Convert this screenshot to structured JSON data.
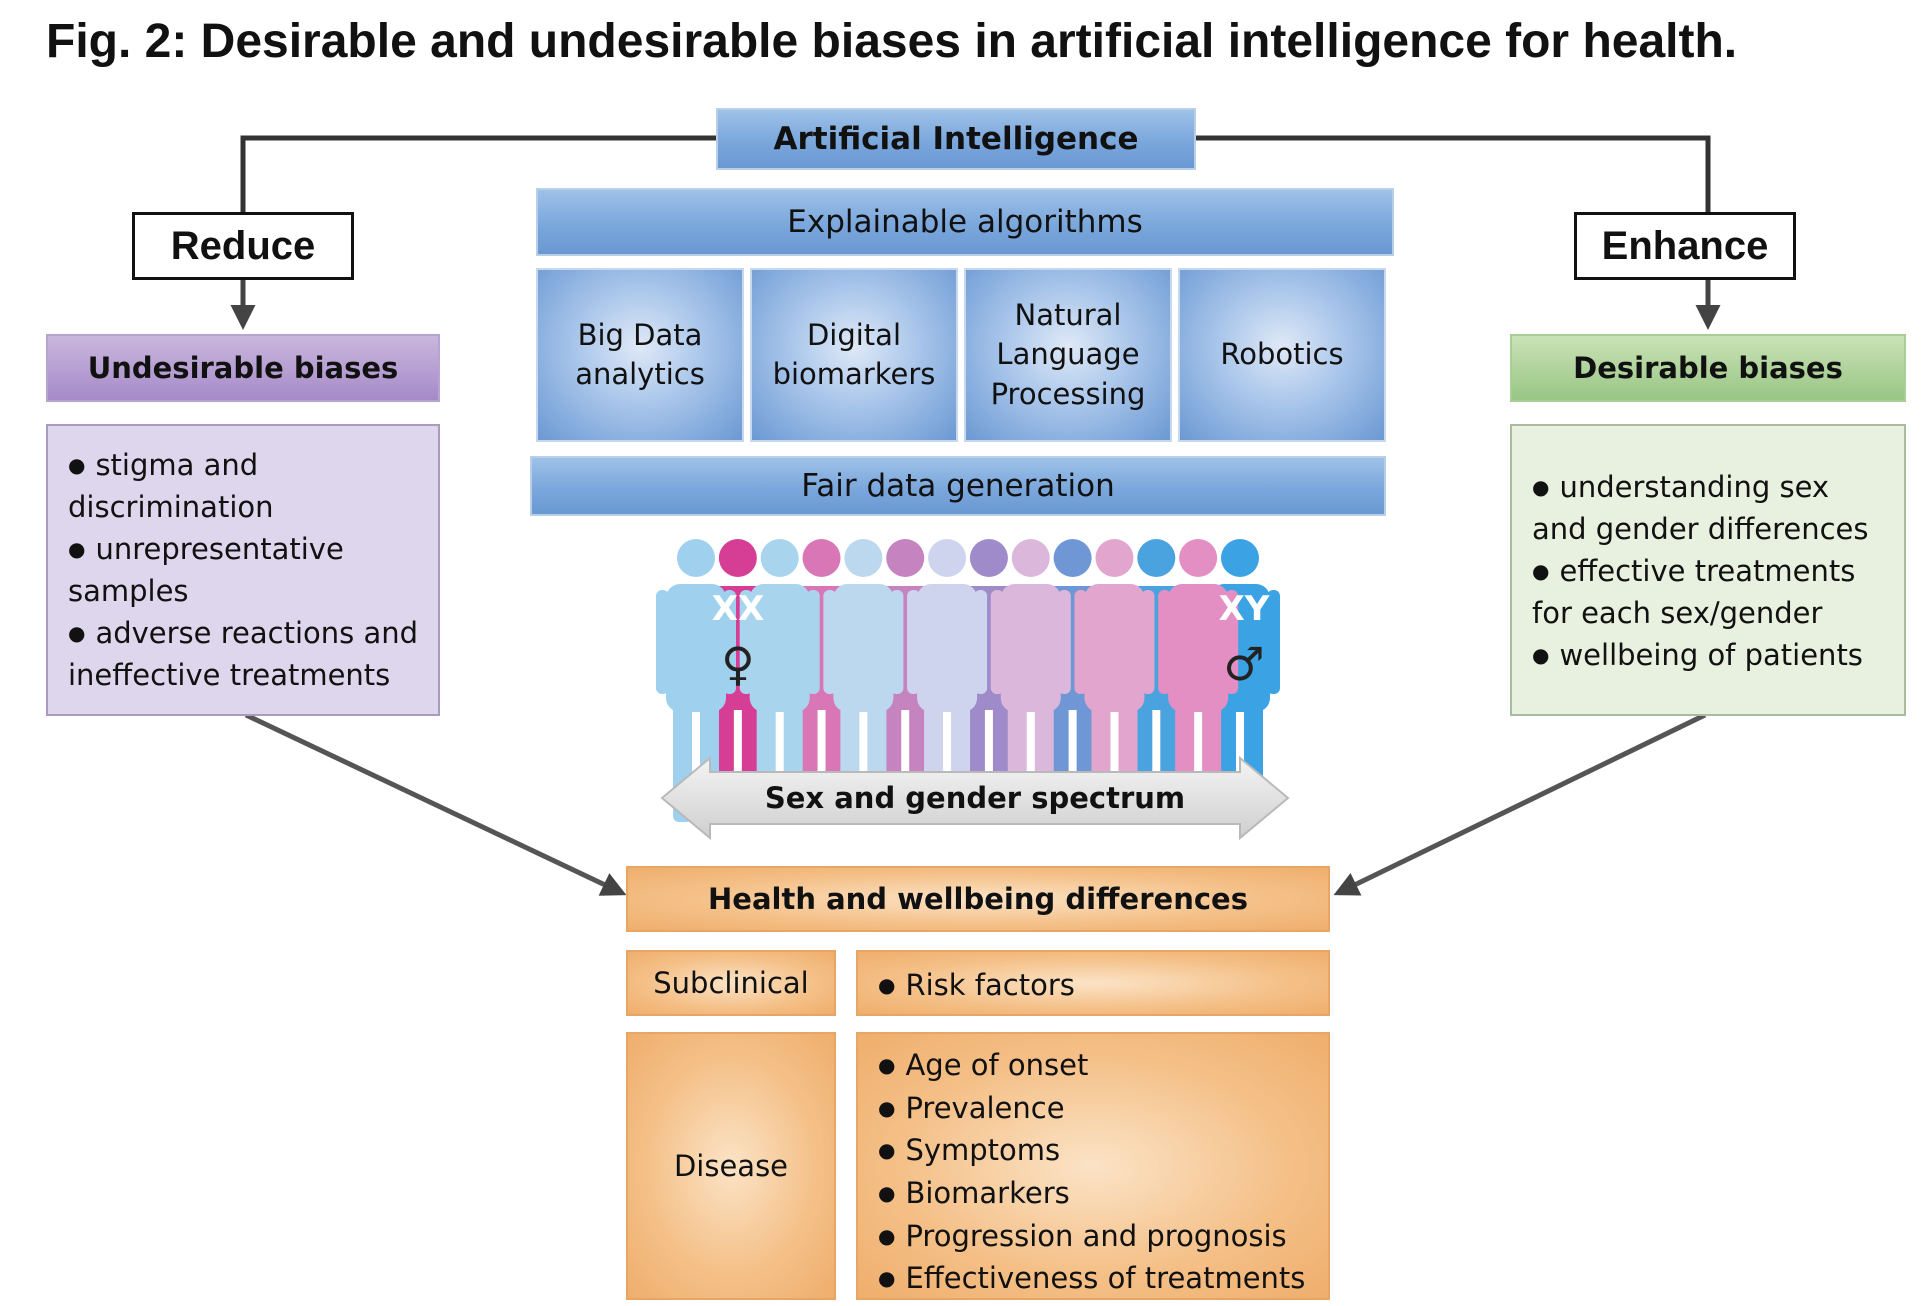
{
  "title": "Fig. 2: Desirable and undesirable biases in artificial intelligence for health.",
  "ai": {
    "top": "Artificial Intelligence",
    "explainable": "Explainable algorithms",
    "tiles": [
      [
        "Big Data",
        "analytics"
      ],
      [
        "Digital",
        "biomarkers"
      ],
      [
        "Natural",
        "Language",
        "Processing"
      ],
      [
        "Robotics"
      ]
    ],
    "fair": "Fair data generation"
  },
  "reduce": {
    "label": "Reduce",
    "header": "Undesirable biases",
    "items": [
      "stigma and discrimination",
      "unrepresentative samples",
      "adverse reactions and ineffective treatments"
    ]
  },
  "enhance": {
    "label": "Enhance",
    "header": "Desirable biases",
    "items": [
      "understanding sex and gender differences",
      "effective treatments for each sex/gender",
      "wellbeing of patients"
    ]
  },
  "spectrum": {
    "xx": "XX",
    "xy": "XY",
    "female_symbol": "♀",
    "male_symbol": "♂",
    "label": "Sex and gender spectrum",
    "figure_colors": [
      "#9fd1ee",
      "#d63d95",
      "#a8d4ee",
      "#d977b6",
      "#bcd8ee",
      "#c583c0",
      "#cfd4ee",
      "#9f8bc9",
      "#dcb7dc",
      "#6f97d6",
      "#e2a5cd",
      "#4aa3df",
      "#e38fc4",
      "#3ba3e4"
    ]
  },
  "health": {
    "header": "Health and wellbeing differences",
    "subclinical": "Subclinical",
    "subclinical_items": [
      "Risk factors"
    ],
    "disease": "Disease",
    "disease_items": [
      "Age of onset",
      "Prevalence",
      "Symptoms",
      "Biomarkers",
      "Progression and prognosis",
      "Effectiveness of treatments"
    ]
  }
}
